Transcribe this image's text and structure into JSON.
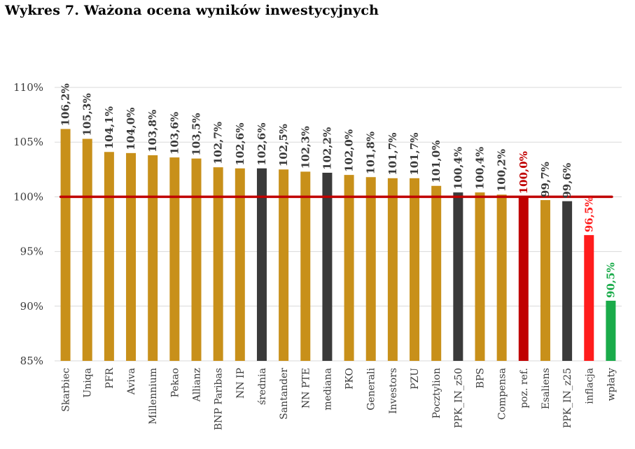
{
  "title": "Wykres 7. Ważona ocena wyników inwestycyjnych",
  "chart_data": {
    "type": "bar",
    "title": "Wykres 7. Ważona ocena wyników inwestycyjnych",
    "xlabel": "",
    "ylabel": "",
    "ylim": [
      85,
      110
    ],
    "yticks": [
      85,
      90,
      95,
      100,
      105,
      110
    ],
    "ytick_labels": [
      "85%",
      "90%",
      "95%",
      "100%",
      "105%",
      "110%"
    ],
    "grid": true,
    "reference_line": 100,
    "reference_color": "#c00000",
    "categories": [
      "Skarbiec",
      "Uniqa",
      "PFR",
      "Aviva",
      "Millennium",
      "Pekao",
      "Allianz",
      "BNP Paribas",
      "NN IP",
      "średnia",
      "Santander",
      "NN PTE",
      "mediana",
      "PKO",
      "Generali",
      "Investors",
      "PZU",
      "Pocztylion",
      "PPK_IN_z50",
      "BPS",
      "Compensa",
      "poz. ref.",
      "Esaliens",
      "PPK_IN_z25",
      "inflacja",
      "wpłaty"
    ],
    "values": [
      106.2,
      105.3,
      104.1,
      104.0,
      103.8,
      103.6,
      103.5,
      102.7,
      102.6,
      102.6,
      102.5,
      102.3,
      102.2,
      102.0,
      101.8,
      101.7,
      101.7,
      101.0,
      100.4,
      100.4,
      100.2,
      100.0,
      99.7,
      99.6,
      96.5,
      90.5
    ],
    "data_labels": [
      "106,2%",
      "105,3%",
      "104,1%",
      "104,0%",
      "103,8%",
      "103,6%",
      "103,5%",
      "102,7%",
      "102,6%",
      "102,6%",
      "102,5%",
      "102,3%",
      "102,2%",
      "102,0%",
      "101,8%",
      "101,7%",
      "101,7%",
      "101,0%",
      "100,4%",
      "100,4%",
      "100,2%",
      "100,0%",
      "99,7%",
      "99,6%",
      "96,5%",
      "90,5%"
    ],
    "bar_colors": [
      "#c8901a",
      "#c8901a",
      "#c8901a",
      "#c8901a",
      "#c8901a",
      "#c8901a",
      "#c8901a",
      "#c8901a",
      "#c8901a",
      "#3a3a3a",
      "#c8901a",
      "#c8901a",
      "#3a3a3a",
      "#c8901a",
      "#c8901a",
      "#c8901a",
      "#c8901a",
      "#c8901a",
      "#3a3a3a",
      "#c8901a",
      "#c8901a",
      "#c00000",
      "#c8901a",
      "#3a3a3a",
      "#ff1c1c",
      "#1aab4a"
    ],
    "label_colors": [
      "#3a3a3a",
      "#3a3a3a",
      "#3a3a3a",
      "#3a3a3a",
      "#3a3a3a",
      "#3a3a3a",
      "#3a3a3a",
      "#3a3a3a",
      "#3a3a3a",
      "#3a3a3a",
      "#3a3a3a",
      "#3a3a3a",
      "#3a3a3a",
      "#3a3a3a",
      "#3a3a3a",
      "#3a3a3a",
      "#3a3a3a",
      "#3a3a3a",
      "#3a3a3a",
      "#3a3a3a",
      "#3a3a3a",
      "#c00000",
      "#3a3a3a",
      "#3a3a3a",
      "#ff1c1c",
      "#1aab4a"
    ]
  }
}
